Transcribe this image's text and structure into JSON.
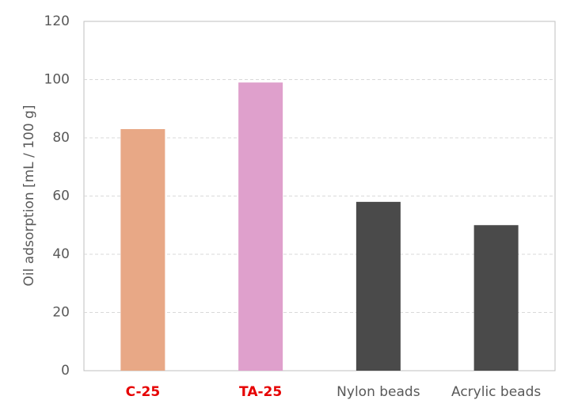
{
  "chart_data": {
    "type": "bar",
    "y_label": "Oil adsorption [mL / 100 g]",
    "categories": [
      "C-25",
      "TA-25",
      "Nylon beads",
      "Acrylic beads"
    ],
    "values": [
      83,
      99,
      58,
      50
    ],
    "colors": [
      "#e8a886",
      "#dfa0cc",
      "#4a4a4a",
      "#4a4a4a"
    ],
    "category_label_colors": [
      "#e60000",
      "#e60000",
      "#595959",
      "#595959"
    ],
    "category_label_bold": [
      true,
      true,
      false,
      false
    ],
    "ylim": [
      0,
      120
    ],
    "yticks": [
      0,
      20,
      40,
      60,
      80,
      100,
      120
    ],
    "grid": true
  }
}
